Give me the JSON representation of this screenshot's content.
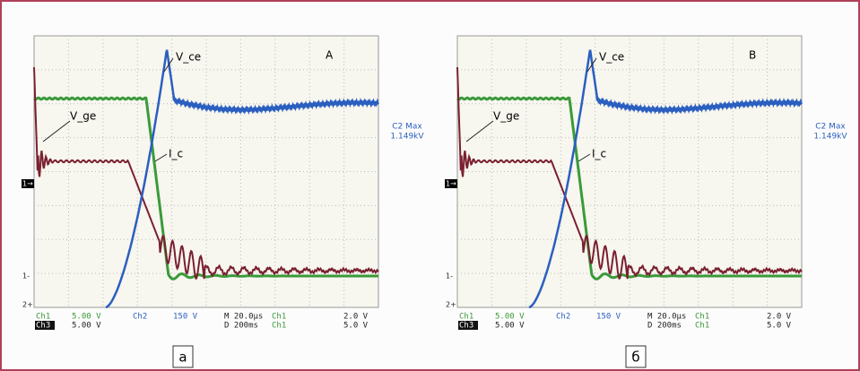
{
  "panels": [
    {
      "marker": "A",
      "labels": {
        "vce": "V_ce",
        "vge": "V_ge",
        "ic": "I_c"
      },
      "max_label": "C2 Max",
      "max_value": "1.149kV",
      "left_markers": [
        "1→",
        "1-",
        "2+"
      ],
      "status": [
        [
          "Ch1",
          "5.00 V",
          "Ch2",
          "150 V",
          "M 20.0µs",
          "Ch1",
          "2.0 V"
        ],
        [
          "Ch3",
          "5.00 V",
          "D  200ms",
          "Ch1",
          "5.0 V"
        ]
      ],
      "caption": "а"
    },
    {
      "marker": "B",
      "labels": {
        "vce": "V_ce",
        "vge": "V_ge",
        "ic": "I_c"
      },
      "max_label": "C2 Max",
      "max_value": "1.149kV",
      "left_markers": [
        "1→",
        "1-",
        "2+"
      ],
      "status": [
        [
          "Ch1",
          "5.00 V",
          "Ch2",
          "150 V",
          "M 20.0µs",
          "Ch1",
          "2.0 V"
        ],
        [
          "Ch3",
          "5.00 V",
          "D  200ms",
          "Ch1",
          "5.0 V"
        ]
      ],
      "caption": "б"
    }
  ]
}
